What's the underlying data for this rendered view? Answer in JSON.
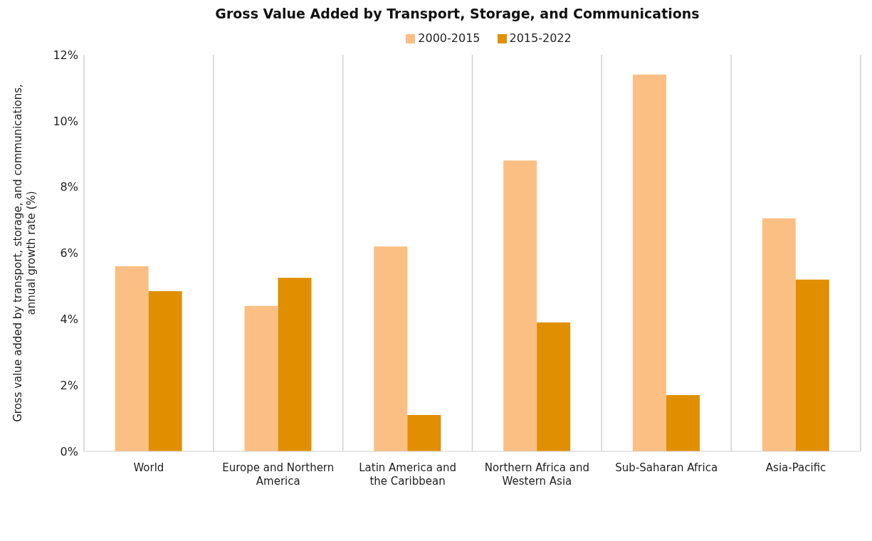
{
  "chart_data": {
    "type": "bar",
    "title": "Gross Value Added by Transport, Storage, and Communications",
    "ylabel": "Gross value added by transport, storage, and communications, annual growth rate (%)",
    "categories": [
      "World",
      "Europe and Northern America",
      "Latin America and the Caribbean",
      "Northern Africa and Western Asia",
      "Sub-Saharan Africa",
      "Asia-Pacific"
    ],
    "series": [
      {
        "name": "2000-2015",
        "color": "#fbbf84",
        "values": [
          5.6,
          4.4,
          6.2,
          8.8,
          11.4,
          7.05
        ]
      },
      {
        "name": "2015-2022",
        "color": "#e08f00",
        "values": [
          4.85,
          5.25,
          1.1,
          3.9,
          1.7,
          5.2
        ]
      }
    ],
    "ylim": [
      0,
      12
    ],
    "yticks": [
      {
        "value": 0,
        "label": "0%"
      },
      {
        "value": 2,
        "label": "2%"
      },
      {
        "value": 4,
        "label": "4%"
      },
      {
        "value": 6,
        "label": "6%"
      },
      {
        "value": 8,
        "label": "8%"
      },
      {
        "value": 10,
        "label": "10%"
      },
      {
        "value": 12,
        "label": "12%"
      }
    ],
    "grid": "x",
    "legend": "top"
  }
}
